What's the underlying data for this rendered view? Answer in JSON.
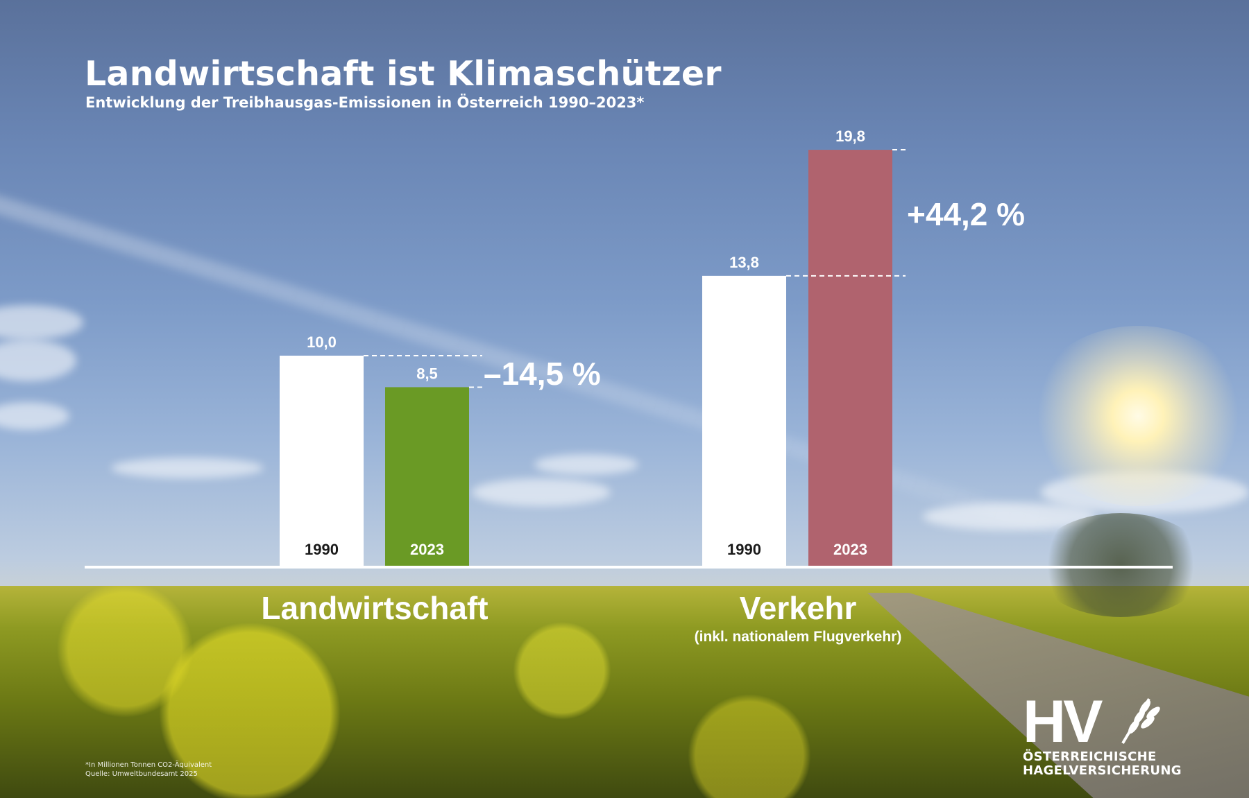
{
  "header": {
    "title": "Landwirtschaft ist Klimaschützer",
    "subtitle": "Entwicklung der Treibhausgas-Emissionen in Österreich 1990–2023*"
  },
  "colors": {
    "bar_1990": "#ffffff",
    "landwirtschaft_2023": "#6a9a25",
    "verkehr_2023": "#b0636e",
    "text": "#ffffff",
    "year_label_dark": "#1a1a1a"
  },
  "chart_data": {
    "type": "bar",
    "title": "Landwirtschaft ist Klimaschützer",
    "subtitle": "Entwicklung der Treibhausgas-Emissionen in Österreich 1990–2023*",
    "unit": "Mio. Tonnen CO2-Äquivalent",
    "ylim": [
      0,
      20
    ],
    "grid": false,
    "groups": [
      {
        "name": "Landwirtschaft",
        "sublabel": "",
        "bars": [
          {
            "year": "1990",
            "value": 10.0,
            "label": "10,0",
            "color": "#ffffff"
          },
          {
            "year": "2023",
            "value": 8.5,
            "label": "8,5",
            "color": "#6a9a25"
          }
        ],
        "change": "–14,5 %"
      },
      {
        "name": "Verkehr",
        "sublabel": "(inkl. nationalem Flugverkehr)",
        "bars": [
          {
            "year": "1990",
            "value": 13.8,
            "label": "13,8",
            "color": "#ffffff"
          },
          {
            "year": "2023",
            "value": 19.8,
            "label": "19,8",
            "color": "#b0636e"
          }
        ],
        "change": "+44,2 %"
      }
    ]
  },
  "footnote": {
    "line1": "*In Millionen Tonnen CO2-Äquivalent",
    "line2": "Quelle: Umweltbundesamt 2025"
  },
  "logo": {
    "mark": "HV",
    "icon": "wheat-icon",
    "line1": "ÖSTERREICHISCHE",
    "line2": "HAGELVERSICHERUNG"
  }
}
